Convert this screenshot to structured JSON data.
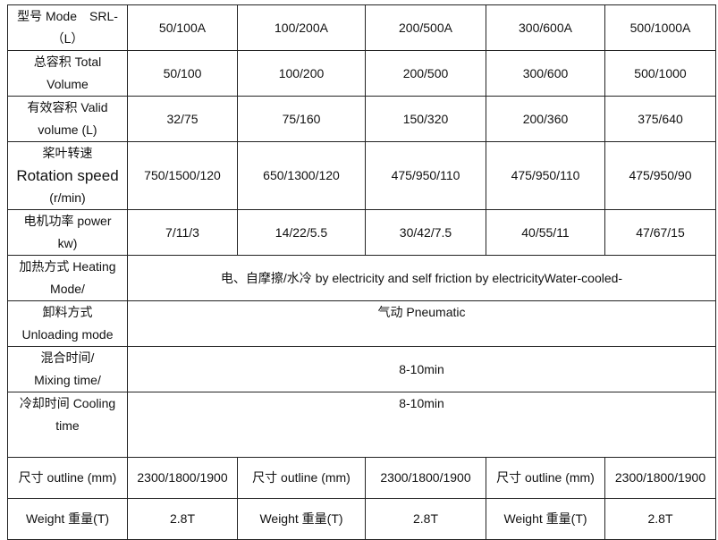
{
  "rows": [
    {
      "label": [
        "型号 Mode　SRL-",
        "（L）"
      ],
      "values": [
        "50/100A",
        "100/200A",
        "200/500A",
        "300/600A",
        "500/1000A"
      ]
    },
    {
      "label": [
        "总容积 Total",
        "Volume"
      ],
      "values": [
        "50/100",
        "100/200",
        "200/500",
        "300/600",
        "500/1000"
      ]
    },
    {
      "label": [
        "有效容积 Valid",
        "volume (L)"
      ],
      "values": [
        "32/75",
        "75/160",
        "150/320",
        "200/360",
        "375/640"
      ]
    },
    {
      "label": [
        "桨叶转速",
        "Rotation speed",
        "(r/min)"
      ],
      "values": [
        "750/1500/120",
        "650/1300/120",
        "475/950/110",
        "475/950/110",
        "475/950/90"
      ]
    },
    {
      "label": [
        "电机功率 power",
        "kw)"
      ],
      "values": [
        "7/11/3",
        "14/22/5.5",
        "30/42/7.5",
        "40/55/11",
        "47/67/15"
      ]
    }
  ],
  "merged_rows": [
    {
      "label": [
        "加热方式 Heating",
        "Mode/"
      ],
      "value": "电、自摩擦/水冷 by electricity and self friction by electricityWater-cooled-"
    },
    {
      "label": [
        "卸料方式",
        "Unloading mode"
      ],
      "value": "气动 Pneumatic"
    },
    {
      "label": [
        "混合时间/",
        "Mixing time/"
      ],
      "value": "8-10min"
    },
    {
      "label": [
        "冷却时间 Cooling",
        "time"
      ],
      "value": "8-10min"
    }
  ],
  "outline_row": [
    "尺寸 outline (mm)",
    "2300/1800/1900",
    "尺寸 outline (mm)",
    "2300/1800/1900",
    "尺寸 outline (mm)",
    "2300/1800/1900"
  ],
  "weight_row": [
    "Weight 重量(T)",
    "2.8T",
    "Weight 重量(T)",
    "2.8T",
    "Weight 重量(T)",
    "2.8T"
  ]
}
